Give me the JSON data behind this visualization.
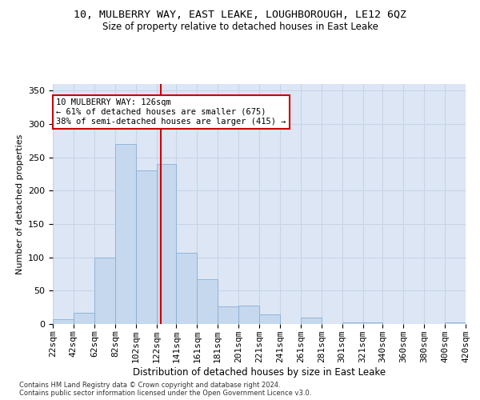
{
  "title": "10, MULBERRY WAY, EAST LEAKE, LOUGHBOROUGH, LE12 6QZ",
  "subtitle": "Size of property relative to detached houses in East Leake",
  "xlabel": "Distribution of detached houses by size in East Leake",
  "ylabel": "Number of detached properties",
  "bar_color": "#c5d8ee",
  "bar_edge_color": "#8aafd4",
  "grid_color": "#c8d4e8",
  "background_color": "#dce6f5",
  "vline_x": 126,
  "vline_color": "#cc0000",
  "bin_edges": [
    22,
    42,
    62,
    82,
    102,
    122,
    141,
    161,
    181,
    201,
    221,
    241,
    261,
    281,
    301,
    321,
    340,
    360,
    380,
    400,
    420
  ],
  "bar_heights": [
    7,
    17,
    100,
    270,
    230,
    240,
    107,
    67,
    27,
    28,
    14,
    0,
    10,
    0,
    3,
    3,
    0,
    0,
    0,
    2
  ],
  "tick_labels": [
    "22sqm",
    "42sqm",
    "62sqm",
    "82sqm",
    "102sqm",
    "122sqm",
    "141sqm",
    "161sqm",
    "181sqm",
    "201sqm",
    "221sqm",
    "241sqm",
    "261sqm",
    "281sqm",
    "301sqm",
    "321sqm",
    "340sqm",
    "360sqm",
    "380sqm",
    "400sqm",
    "420sqm"
  ],
  "ylim": [
    0,
    360
  ],
  "yticks": [
    0,
    50,
    100,
    150,
    200,
    250,
    300,
    350
  ],
  "annotation_text": "10 MULBERRY WAY: 126sqm\n← 61% of detached houses are smaller (675)\n38% of semi-detached houses are larger (415) →",
  "annotation_box_color": "#ffffff",
  "annotation_box_edge": "#cc0000",
  "footer_line1": "Contains HM Land Registry data © Crown copyright and database right 2024.",
  "footer_line2": "Contains public sector information licensed under the Open Government Licence v3.0."
}
